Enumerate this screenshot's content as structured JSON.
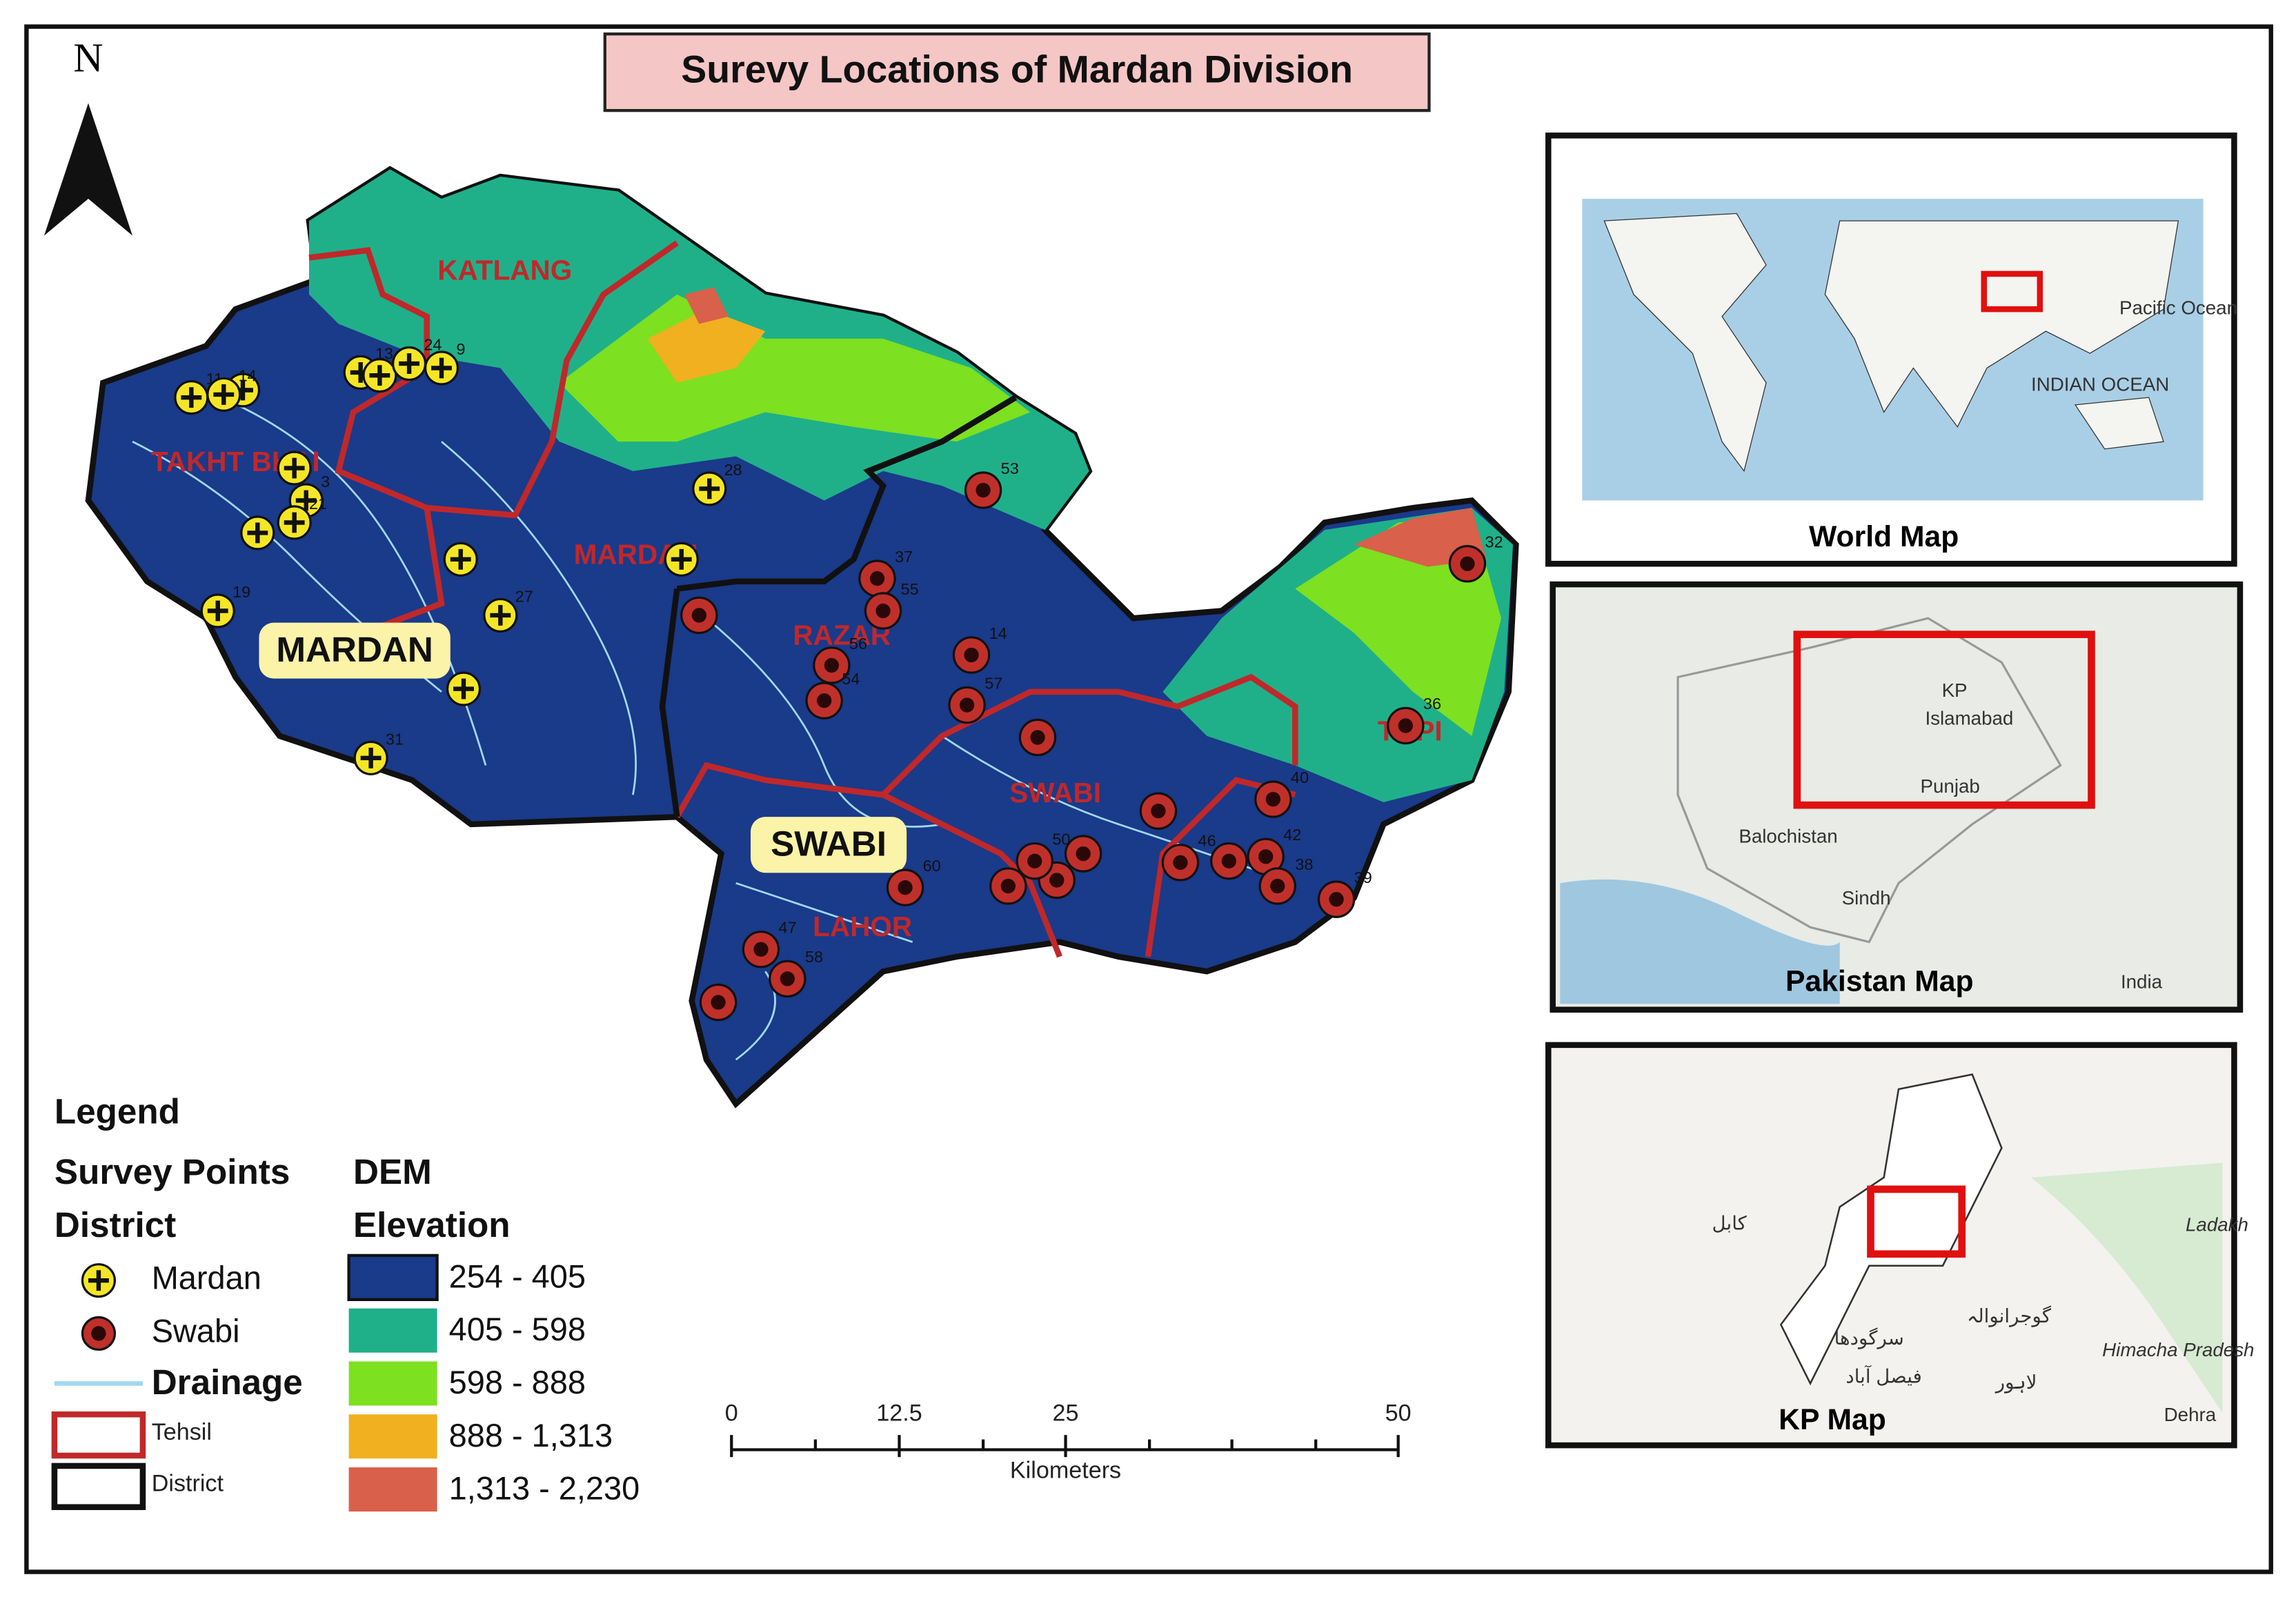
{
  "title": "Surevy Locations of Mardan Division",
  "north": "N",
  "district_labels": [
    "MARDAN",
    "SWABI"
  ],
  "tehsil_labels": [
    "KATLANG",
    "TAKHT BHAI",
    "MARDAN",
    "RAZAR",
    "SWABI",
    "LAHOR",
    "TOPI"
  ],
  "points": {
    "mardan": [
      "11",
      null,
      "14",
      "13",
      "12",
      "24",
      "9",
      null,
      "3",
      "21",
      null,
      "19",
      null,
      "27",
      null,
      "31",
      "28",
      null
    ],
    "swabi": [
      "53",
      "32",
      "36",
      "37",
      "55",
      null,
      "56",
      "54",
      "14",
      "57",
      null,
      null,
      "40",
      "60",
      "47",
      "58",
      null,
      null,
      null,
      null,
      "50",
      "46",
      null,
      "42",
      "38",
      "39"
    ]
  },
  "legend": {
    "title": "Legend",
    "survey_points": "Survey Points",
    "dem": "DEM",
    "district_heading": "District",
    "elevation": "Elevation",
    "mardan": "Mardan",
    "swabi": "Swabi",
    "drainage": "Drainage",
    "tehsil": "Tehsil",
    "district": "District",
    "classes": [
      "254 - 405",
      "405 - 598",
      "598 - 888",
      "888 - 1,313",
      "1,313 - 2,230"
    ]
  },
  "scale_bar": {
    "ticks": [
      "0",
      "12.5",
      "25",
      "50"
    ],
    "unit": "Kilometers"
  },
  "insets": {
    "world": {
      "title": "World Map",
      "labels": [
        "INDIAN OCEAN",
        "Pacific Ocean"
      ]
    },
    "pakistan": {
      "title": "Pakistan Map",
      "labels": [
        "KP",
        "Islamabad",
        "Punjab",
        "Balochistan",
        "Sindh",
        "India"
      ]
    },
    "kp": {
      "title": "KP Map",
      "labels": [
        "Ladakh",
        "Himacha Pradesh",
        "Dehra",
        "کابل",
        "سرگودھا",
        "فیصل آباد",
        "گوجرانوالہ",
        "لاہور"
      ]
    }
  }
}
